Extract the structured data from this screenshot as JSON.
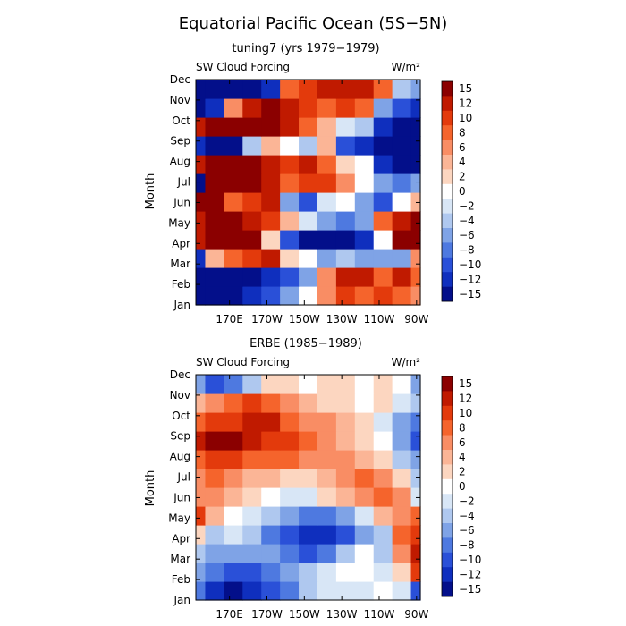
{
  "title": "Equatorial Pacific Ocean (5S−5N)",
  "colorbar_levels": [
    "15",
    "12",
    "10",
    "8",
    "6",
    "4",
    "2",
    "0",
    "−2",
    "−4",
    "−6",
    "−8",
    "−10",
    "−12",
    "−15"
  ],
  "colorbar_colors": [
    "#8b0000",
    "#c01a00",
    "#e33a0c",
    "#f5642c",
    "#f98d64",
    "#fbb596",
    "#fcd6c0",
    "#ffffff",
    "#d8e6f6",
    "#afc8ef",
    "#7fa3e6",
    "#4e79e0",
    "#2a50d8",
    "#0f2fbe",
    "#030f8a"
  ],
  "chart_data": [
    {
      "type": "heatmap",
      "subtitle": "tuning7 (yrs 1979−1979)",
      "field_label": "SW Cloud Forcing",
      "units_label": "W/m²",
      "ylabel": "Month",
      "xlabel": "",
      "x_ticks": [
        "170E",
        "170W",
        "150W",
        "130W",
        "110W",
        "90W"
      ],
      "x_tick_lon": [
        170,
        190,
        210,
        230,
        250,
        270
      ],
      "x_range": [
        152,
        272
      ],
      "y_categories": [
        "Jan",
        "Feb",
        "Mar",
        "Apr",
        "May",
        "Jun",
        "Jul",
        "Aug",
        "Sep",
        "Oct",
        "Nov",
        "Dec"
      ],
      "longitudes": [
        152,
        162,
        172,
        182,
        192,
        202,
        212,
        222,
        232,
        242,
        252,
        262,
        272
      ],
      "values": [
        [
          -14,
          -15,
          -14,
          -13,
          -10,
          -6,
          0,
          6,
          10,
          8,
          10,
          8,
          6
        ],
        [
          -15,
          -15,
          -15,
          -14,
          -12,
          -9,
          -6,
          6,
          13,
          12,
          8,
          11,
          8
        ],
        [
          -12,
          4,
          8,
          9,
          12,
          2,
          0,
          -6,
          -4,
          -6,
          -6,
          -5,
          6
        ],
        [
          12,
          15,
          15,
          14,
          2,
          -10,
          -15,
          -15,
          -15,
          -13,
          0,
          14,
          15
        ],
        [
          12,
          15,
          14,
          13,
          10,
          3,
          -2,
          -6,
          -8,
          -5,
          8,
          13,
          15
        ],
        [
          14,
          15,
          8,
          10,
          12,
          -6,
          -10,
          -2,
          0,
          -6,
          -9,
          0,
          4
        ],
        [
          -14,
          15,
          15,
          14,
          12,
          8,
          9,
          10,
          6,
          0,
          -6,
          -8,
          -6
        ],
        [
          12,
          15,
          15,
          14,
          12,
          10,
          12,
          8,
          2,
          0,
          -12,
          -14,
          -15
        ],
        [
          -12,
          -15,
          -14,
          -4,
          4,
          0,
          -3,
          4,
          -10,
          -13,
          -15,
          -15,
          -15
        ],
        [
          12,
          14,
          14,
          15,
          15,
          12,
          8,
          4,
          -2,
          -4,
          -12,
          -15,
          -15
        ],
        [
          -14,
          -12,
          6,
          12,
          15,
          12,
          10,
          8,
          9,
          8,
          -6,
          -10,
          -12
        ],
        [
          -15,
          -15,
          -15,
          -14,
          -12,
          8,
          10,
          12,
          11,
          12,
          8,
          -4,
          -6
        ]
      ]
    },
    {
      "type": "heatmap",
      "subtitle": "ERBE (1985−1989)",
      "field_label": "SW Cloud Forcing",
      "units_label": "W/m²",
      "ylabel": "Month",
      "xlabel": "",
      "x_ticks": [
        "170E",
        "170W",
        "150W",
        "130W",
        "110W",
        "90W"
      ],
      "x_tick_lon": [
        170,
        190,
        210,
        230,
        250,
        270
      ],
      "x_range": [
        152,
        272
      ],
      "y_categories": [
        "Jan",
        "Feb",
        "Mar",
        "Apr",
        "May",
        "Jun",
        "Jul",
        "Aug",
        "Sep",
        "Oct",
        "Nov",
        "Dec"
      ],
      "longitudes": [
        152,
        162,
        172,
        182,
        192,
        202,
        212,
        222,
        232,
        242,
        252,
        262,
        272
      ],
      "values": [
        [
          -8,
          -12,
          -14,
          -12,
          -10,
          -8,
          -4,
          -2,
          -2,
          -1,
          0,
          -2,
          -10
        ],
        [
          -6,
          -8,
          -10,
          -9,
          -8,
          -6,
          -4,
          -2,
          0,
          0,
          -2,
          2,
          10
        ],
        [
          -4,
          -6,
          -6,
          -6,
          -6,
          -8,
          -10,
          -8,
          -4,
          0,
          -4,
          6,
          12
        ],
        [
          2,
          -4,
          -2,
          -4,
          -8,
          -10,
          -12,
          -12,
          -10,
          -6,
          -4,
          8,
          10
        ],
        [
          10,
          4,
          0,
          -2,
          -4,
          -6,
          -8,
          -8,
          -6,
          -2,
          4,
          6,
          8
        ],
        [
          6,
          6,
          4,
          2,
          0,
          -2,
          -2,
          2,
          4,
          6,
          8,
          6,
          -2
        ],
        [
          6,
          8,
          6,
          4,
          4,
          2,
          2,
          4,
          6,
          8,
          6,
          2,
          -4
        ],
        [
          8,
          10,
          10,
          8,
          8,
          8,
          6,
          6,
          6,
          4,
          2,
          -4,
          -6
        ],
        [
          12,
          14,
          14,
          12,
          10,
          10,
          8,
          6,
          4,
          2,
          0,
          -6,
          -10
        ],
        [
          8,
          10,
          10,
          12,
          12,
          8,
          6,
          6,
          4,
          2,
          -2,
          -6,
          -8
        ],
        [
          4,
          6,
          8,
          10,
          8,
          6,
          4,
          2,
          2,
          0,
          2,
          -2,
          -4
        ],
        [
          -6,
          -10,
          -8,
          -4,
          2,
          2,
          0,
          2,
          2,
          0,
          2,
          0,
          -6
        ]
      ]
    }
  ]
}
